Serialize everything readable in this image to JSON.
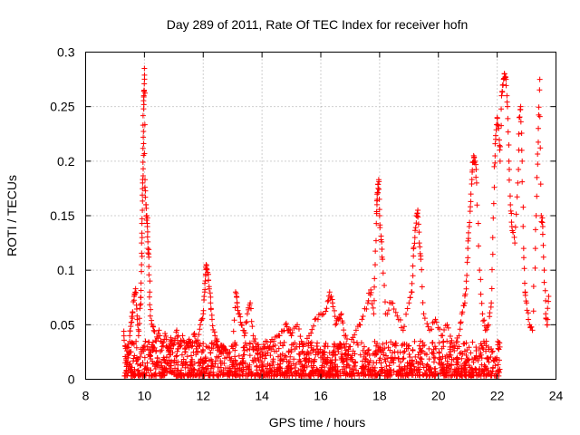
{
  "chart_data": {
    "type": "scatter",
    "title": "Day 289 of 2011, Rate Of TEC Index for receiver hofn",
    "xlabel": "GPS time / hours",
    "ylabel": "ROTI / TECUs",
    "xlim": [
      8,
      24
    ],
    "ylim": [
      0,
      0.3
    ],
    "xticks": [
      "8",
      "10",
      "12",
      "14",
      "16",
      "18",
      "20",
      "22",
      "24"
    ],
    "yticks": [
      "0",
      "0.05",
      "0.1",
      "0.15",
      "0.2",
      "0.25",
      "0.3"
    ],
    "grid": true,
    "marker": "plus",
    "series_color": "#ff0000",
    "series": [
      {
        "points": [
          [
            9.3,
            0.044
          ],
          [
            9.35,
            0.03
          ],
          [
            9.4,
            0.013
          ],
          [
            9.45,
            0.022
          ],
          [
            9.5,
            0.04
          ],
          [
            9.55,
            0.052
          ],
          [
            9.6,
            0.061
          ],
          [
            9.65,
            0.076
          ],
          [
            9.7,
            0.083
          ],
          [
            9.75,
            0.058
          ],
          [
            9.8,
            0.04
          ],
          [
            9.85,
            0.065
          ],
          [
            9.88,
            0.075
          ],
          [
            9.9,
            0.105
          ],
          [
            9.92,
            0.13
          ],
          [
            9.93,
            0.155
          ],
          [
            9.94,
            0.18
          ],
          [
            9.95,
            0.199
          ],
          [
            9.96,
            0.222
          ],
          [
            9.97,
            0.248
          ],
          [
            9.98,
            0.26
          ],
          [
            9.99,
            0.265
          ],
          [
            10.0,
            0.285
          ],
          [
            10.02,
            0.183
          ],
          [
            10.05,
            0.16
          ],
          [
            10.08,
            0.15
          ],
          [
            10.1,
            0.14
          ],
          [
            10.12,
            0.12
          ],
          [
            10.15,
            0.112
          ],
          [
            10.18,
            0.08
          ],
          [
            10.2,
            0.058
          ],
          [
            10.3,
            0.048
          ],
          [
            10.4,
            0.035
          ],
          [
            10.5,
            0.045
          ],
          [
            10.6,
            0.03
          ],
          [
            10.7,
            0.042
          ],
          [
            10.8,
            0.028
          ],
          [
            10.9,
            0.038
          ],
          [
            11.0,
            0.032
          ],
          [
            11.1,
            0.045
          ],
          [
            11.2,
            0.03
          ],
          [
            11.3,
            0.04
          ],
          [
            11.4,
            0.025
          ],
          [
            11.5,
            0.035
          ],
          [
            11.6,
            0.03
          ],
          [
            11.7,
            0.042
          ],
          [
            11.8,
            0.03
          ],
          [
            11.9,
            0.05
          ],
          [
            12.0,
            0.06
          ],
          [
            12.05,
            0.08
          ],
          [
            12.08,
            0.095
          ],
          [
            12.1,
            0.105
          ],
          [
            12.15,
            0.098
          ],
          [
            12.2,
            0.085
          ],
          [
            12.25,
            0.07
          ],
          [
            12.3,
            0.055
          ],
          [
            12.4,
            0.04
          ],
          [
            12.5,
            0.03
          ],
          [
            12.6,
            0.025
          ],
          [
            12.7,
            0.03
          ],
          [
            12.8,
            0.02
          ],
          [
            13.0,
            0.03
          ],
          [
            13.1,
            0.08
          ],
          [
            13.15,
            0.07
          ],
          [
            13.2,
            0.06
          ],
          [
            13.3,
            0.05
          ],
          [
            13.4,
            0.04
          ],
          [
            13.5,
            0.06
          ],
          [
            13.6,
            0.07
          ],
          [
            13.7,
            0.04
          ],
          [
            13.8,
            0.03
          ],
          [
            14.0,
            0.025
          ],
          [
            14.2,
            0.03
          ],
          [
            14.4,
            0.035
          ],
          [
            14.6,
            0.04
          ],
          [
            14.8,
            0.05
          ],
          [
            14.9,
            0.045
          ],
          [
            15.0,
            0.04
          ],
          [
            15.2,
            0.05
          ],
          [
            15.4,
            0.03
          ],
          [
            15.6,
            0.04
          ],
          [
            15.8,
            0.055
          ],
          [
            16.0,
            0.06
          ],
          [
            16.2,
            0.065
          ],
          [
            16.3,
            0.08
          ],
          [
            16.4,
            0.07
          ],
          [
            16.5,
            0.05
          ],
          [
            16.6,
            0.055
          ],
          [
            16.7,
            0.06
          ],
          [
            16.8,
            0.04
          ],
          [
            17.0,
            0.03
          ],
          [
            17.2,
            0.045
          ],
          [
            17.4,
            0.055
          ],
          [
            17.6,
            0.07
          ],
          [
            17.7,
            0.082
          ],
          [
            17.8,
            0.06
          ],
          [
            17.85,
            0.105
          ],
          [
            17.9,
            0.152
          ],
          [
            17.92,
            0.165
          ],
          [
            17.95,
            0.175
          ],
          [
            17.97,
            0.183
          ],
          [
            18.0,
            0.15
          ],
          [
            18.05,
            0.128
          ],
          [
            18.1,
            0.11
          ],
          [
            18.2,
            0.06
          ],
          [
            18.4,
            0.07
          ],
          [
            18.6,
            0.058
          ],
          [
            18.8,
            0.045
          ],
          [
            19.0,
            0.07
          ],
          [
            19.1,
            0.08
          ],
          [
            19.15,
            0.113
          ],
          [
            19.2,
            0.13
          ],
          [
            19.25,
            0.15
          ],
          [
            19.3,
            0.155
          ],
          [
            19.35,
            0.125
          ],
          [
            19.4,
            0.11
          ],
          [
            19.5,
            0.06
          ],
          [
            19.7,
            0.045
          ],
          [
            19.9,
            0.055
          ],
          [
            20.1,
            0.04
          ],
          [
            20.3,
            0.05
          ],
          [
            20.5,
            0.03
          ],
          [
            20.7,
            0.04
          ],
          [
            20.8,
            0.06
          ],
          [
            20.9,
            0.07
          ],
          [
            20.95,
            0.09
          ],
          [
            21.0,
            0.12
          ],
          [
            21.05,
            0.14
          ],
          [
            21.1,
            0.163
          ],
          [
            21.15,
            0.19
          ],
          [
            21.2,
            0.205
          ],
          [
            21.25,
            0.2
          ],
          [
            21.3,
            0.18
          ],
          [
            21.4,
            0.1
          ],
          [
            21.5,
            0.06
          ],
          [
            21.6,
            0.045
          ],
          [
            21.7,
            0.05
          ],
          [
            21.8,
            0.07
          ],
          [
            21.85,
            0.13
          ],
          [
            21.9,
            0.195
          ],
          [
            21.95,
            0.22
          ],
          [
            22.0,
            0.24
          ],
          [
            22.05,
            0.23
          ],
          [
            22.1,
            0.2
          ],
          [
            22.15,
            0.26
          ],
          [
            22.2,
            0.27
          ],
          [
            22.25,
            0.28
          ],
          [
            22.3,
            0.275
          ],
          [
            22.35,
            0.25
          ],
          [
            22.4,
            0.2
          ],
          [
            22.45,
            0.16
          ],
          [
            22.5,
            0.14
          ],
          [
            22.6,
            0.125
          ],
          [
            22.7,
            0.18
          ],
          [
            22.75,
            0.24
          ],
          [
            22.8,
            0.25
          ],
          [
            22.85,
            0.2
          ],
          [
            22.9,
            0.12
          ],
          [
            22.95,
            0.08
          ],
          [
            23.0,
            0.07
          ],
          [
            23.1,
            0.05
          ],
          [
            23.2,
            0.045
          ],
          [
            23.3,
            0.12
          ],
          [
            23.35,
            0.185
          ],
          [
            23.4,
            0.23
          ],
          [
            23.45,
            0.275
          ],
          [
            23.5,
            0.15
          ],
          [
            23.55,
            0.14
          ],
          [
            23.6,
            0.1
          ],
          [
            23.65,
            0.06
          ],
          [
            23.7,
            0.05
          ],
          [
            23.75,
            0.076
          ]
        ]
      }
    ],
    "background_points": {
      "x_range": [
        9.3,
        22.1
      ],
      "y_range": [
        0.003,
        0.035
      ],
      "count": 1600
    }
  }
}
